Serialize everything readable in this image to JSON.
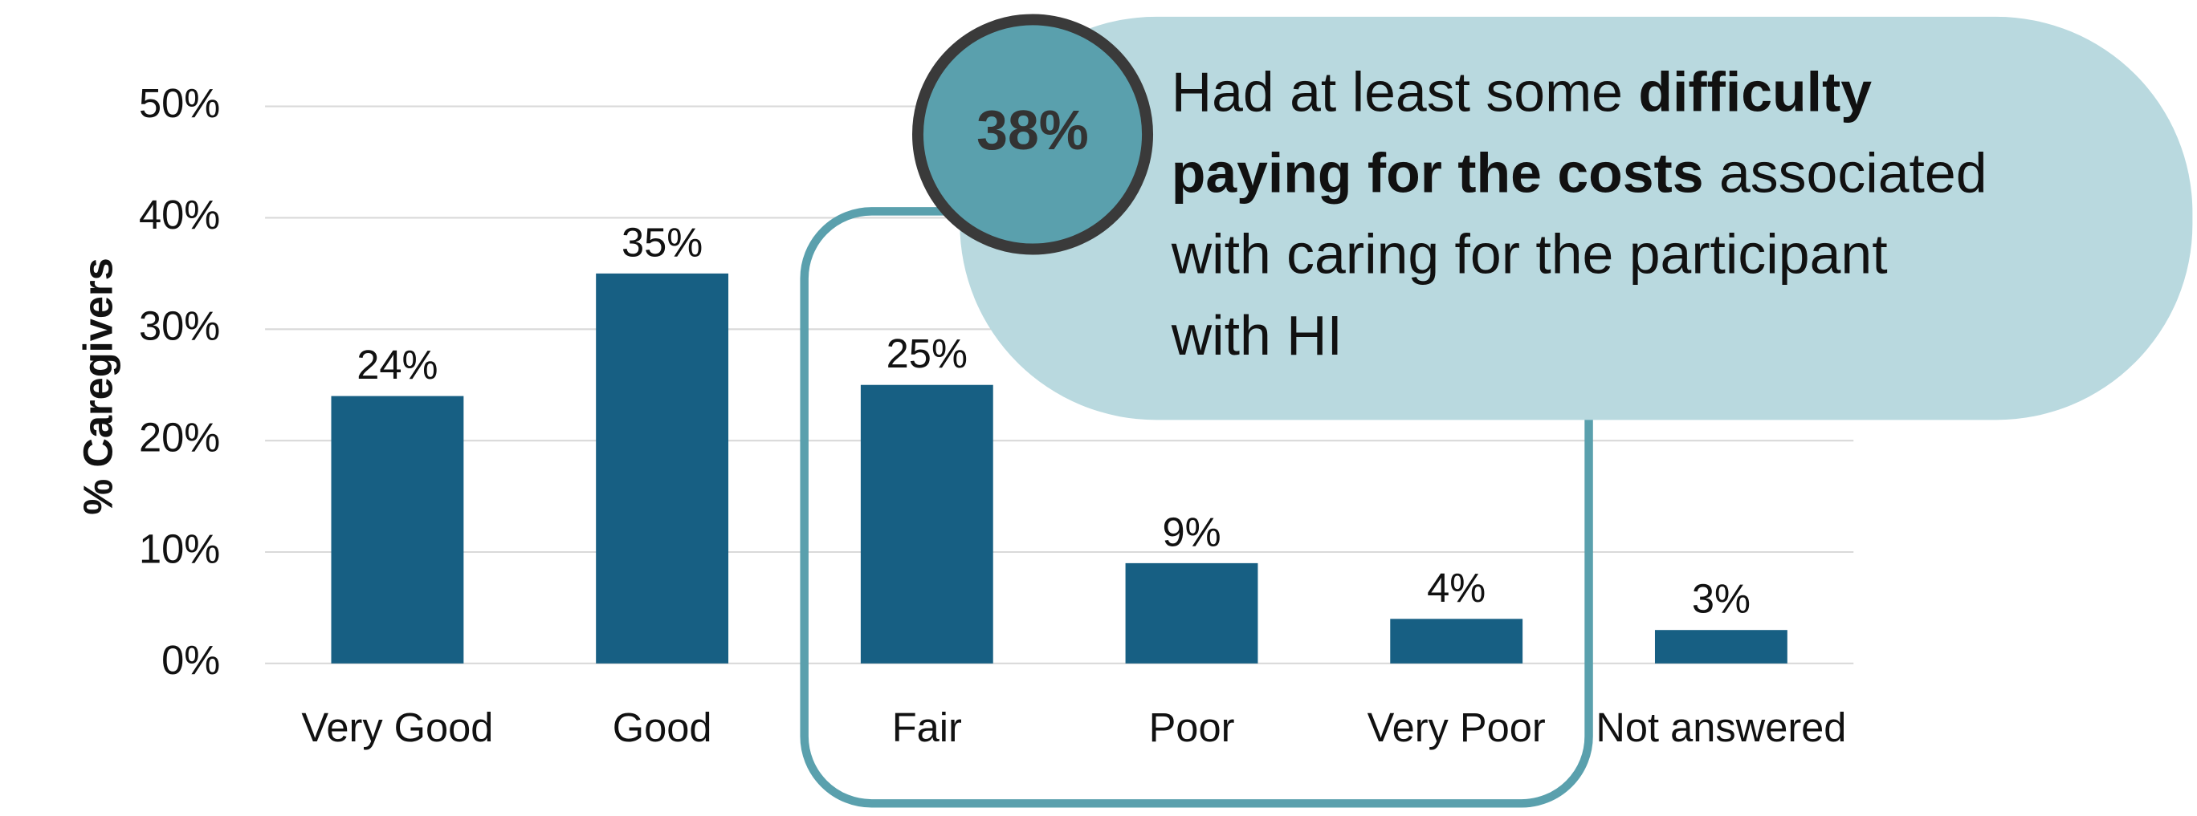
{
  "chart_data": {
    "type": "bar",
    "y_label": "% Caregivers",
    "categories": [
      "Very Good",
      "Good",
      "Fair",
      "Poor",
      "Very Poor",
      "Not answered"
    ],
    "values": [
      24,
      35,
      25,
      9,
      4,
      3
    ],
    "value_labels": [
      "24%",
      "35%",
      "25%",
      "9%",
      "4%",
      "3%"
    ],
    "color": "#175f83",
    "ylim": [
      0,
      50
    ],
    "yticks": [
      {
        "value": 0,
        "label": "0%"
      },
      {
        "value": 10,
        "label": "10%"
      },
      {
        "value": 20,
        "label": "20%"
      },
      {
        "value": 30,
        "label": "30%"
      },
      {
        "value": 40,
        "label": "40%"
      },
      {
        "value": 50,
        "label": "50%"
      }
    ],
    "grid": true,
    "annotation": {
      "badge": "38%",
      "lines": [
        [
          {
            "text": "Had at least some "
          },
          {
            "text": "difficulty",
            "bold": true
          }
        ],
        [
          {
            "text": "paying for the costs",
            "bold": true
          },
          {
            "text": " associated"
          }
        ],
        [
          {
            "text": "with caring for the participant"
          }
        ],
        [
          {
            "text": "with HI"
          }
        ]
      ]
    }
  }
}
